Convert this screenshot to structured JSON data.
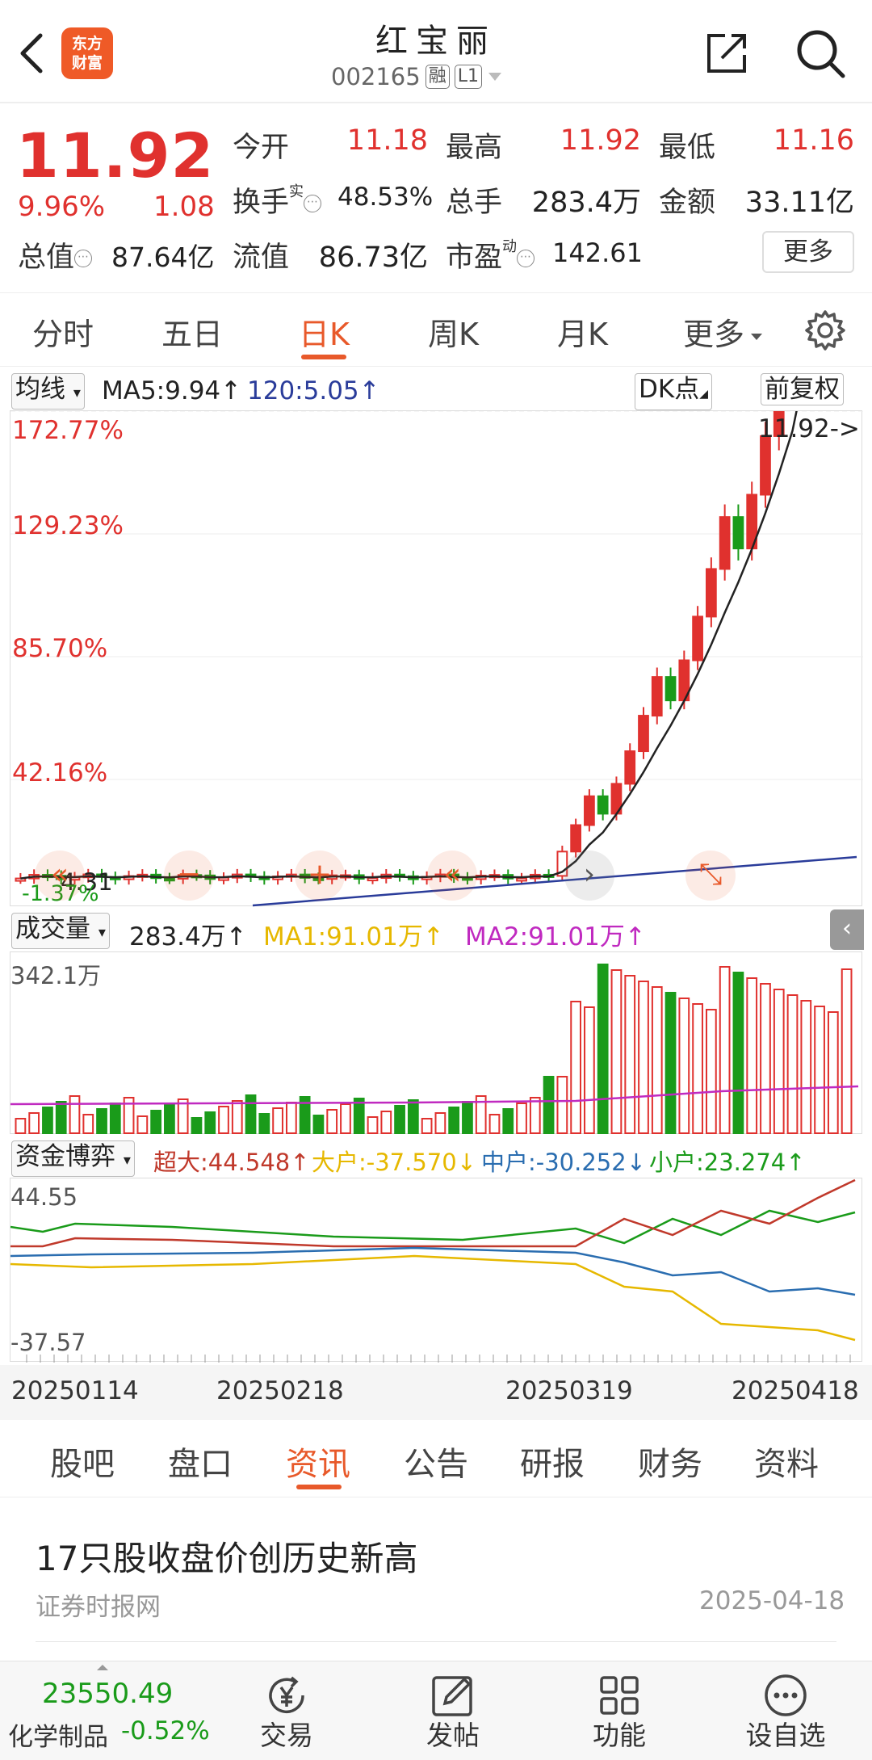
{
  "header": {
    "logo_line1": "东方",
    "logo_line2": "财富",
    "stock_name": "红宝丽",
    "stock_code": "002165",
    "tag_margin": "融",
    "tag_level": "L1"
  },
  "quote": {
    "price": "11.92",
    "change_pct": "9.96%",
    "change_amt": "1.08",
    "open_label": "今开",
    "open_val": "11.18",
    "high_label": "最高",
    "high_val": "11.92",
    "low_label": "最低",
    "low_val": "11.16",
    "turnover_label": "换手",
    "turnover_sup": "实",
    "turnover_val": "48.53%",
    "vol_label": "总手",
    "vol_val": "283.4万",
    "amount_label": "金额",
    "amount_val": "33.11亿",
    "mcap_label": "总值",
    "mcap_val": "87.64亿",
    "float_label": "流值",
    "float_val": "86.73亿",
    "pe_label": "市盈",
    "pe_sup": "动",
    "pe_val": "142.61",
    "more_label": "更多",
    "dots_glyph": "⋯"
  },
  "period_tabs": [
    "分时",
    "五日",
    "日K",
    "周K",
    "月K",
    "更多"
  ],
  "kline": {
    "ma_dropdown": "均线",
    "ma5": "MA5:9.94",
    "ma120": "120:5.05",
    "dk_label": "DK点",
    "adjust_label": "前复权",
    "pct_labels": [
      "172.77%",
      "129.23%",
      "85.70%",
      "42.16%"
    ],
    "last_price_tag": "11.92->",
    "low_tag": "4.31",
    "low_pct": "-1.37%",
    "ctrl_prev": "«",
    "ctrl_zoom_out": "−",
    "ctrl_zoom_in": "+",
    "ctrl_back": "«",
    "ctrl_expand": "⤡"
  },
  "volume": {
    "dropdown": "成交量",
    "vol": "283.4万",
    "ma1": "MA1:91.01万",
    "ma2": "MA2:91.01万",
    "max_label": "342.1万"
  },
  "flow": {
    "dropdown": "资金博弈",
    "super": "超大:44.548",
    "big": "大户:-37.570",
    "mid": "中户:-30.252",
    "small": "小户:23.274",
    "max_label": "44.55",
    "min_label": "-37.57"
  },
  "date_axis": [
    "20250114",
    "20250218",
    "20250319",
    "20250418"
  ],
  "info_tabs": [
    "股吧",
    "盘口",
    "资讯",
    "公告",
    "研报",
    "财务",
    "资料"
  ],
  "news": {
    "title": "17只股收盘价创历史新高",
    "source": "证券时报网",
    "date": "2025-04-18"
  },
  "bottom_bar": {
    "index_value": "23550.49",
    "index_name": "化学制品",
    "index_change": "-0.52%",
    "items": [
      "交易",
      "发帖",
      "功能",
      "设自选"
    ]
  },
  "colors": {
    "up": "#e0312e",
    "down": "#1a9b1a",
    "accent": "#e8592a",
    "ma5": "#222222",
    "ma120": "#2a3c9a"
  }
}
